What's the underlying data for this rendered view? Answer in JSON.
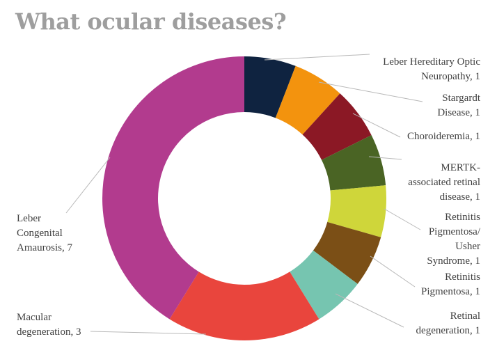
{
  "chart_data": {
    "type": "pie",
    "title": "What ocular diseases?",
    "xlabel": "",
    "ylabel": "",
    "legend": "none",
    "grid": false,
    "slices": [
      {
        "label": "Leber Hereditary Optic Neuropathy",
        "value": 1,
        "color": "#0f2340"
      },
      {
        "label": "Stargardt Disease",
        "value": 1,
        "color": "#f3930e"
      },
      {
        "label": "Choroideremia",
        "value": 1,
        "color": "#8b1825"
      },
      {
        "label": "MERTK-associated retinal disease",
        "value": 1,
        "color": "#4a6424"
      },
      {
        "label": "Retinitis Pigmentosa/ Usher Syndrome",
        "value": 1,
        "color": "#cfd63a"
      },
      {
        "label": "Retinitis Pigmentosa",
        "value": 1,
        "color": "#7b4f16"
      },
      {
        "label": "Retinal degeneration",
        "value": 1,
        "color": "#76c5b0"
      },
      {
        "label": "Macular degeneration",
        "value": 3,
        "color": "#e9453d"
      },
      {
        "label": "Leber Congenital Amaurosis",
        "value": 7,
        "color": "#b23b8e"
      }
    ],
    "labels": [
      {
        "lines": [
          "Leber Hereditary Optic",
          "Neuropathy, 1"
        ]
      },
      {
        "lines": [
          "Stargardt",
          "Disease, 1"
        ]
      },
      {
        "lines": [
          "Choroideremia, 1"
        ]
      },
      {
        "lines": [
          "MERTK-",
          "associated retinal",
          "disease, 1"
        ]
      },
      {
        "lines": [
          "Retinitis",
          "Pigmentosa/",
          "Usher",
          "Syndrome, 1"
        ]
      },
      {
        "lines": [
          "Retinitis",
          "Pigmentosa, 1"
        ]
      },
      {
        "lines": [
          "Retinal",
          "degeneration, 1"
        ]
      },
      {
        "lines": [
          "Macular",
          "degeneration, 3"
        ]
      },
      {
        "lines": [
          "Leber",
          "Congenital",
          "Amaurosis, 7"
        ]
      }
    ]
  }
}
